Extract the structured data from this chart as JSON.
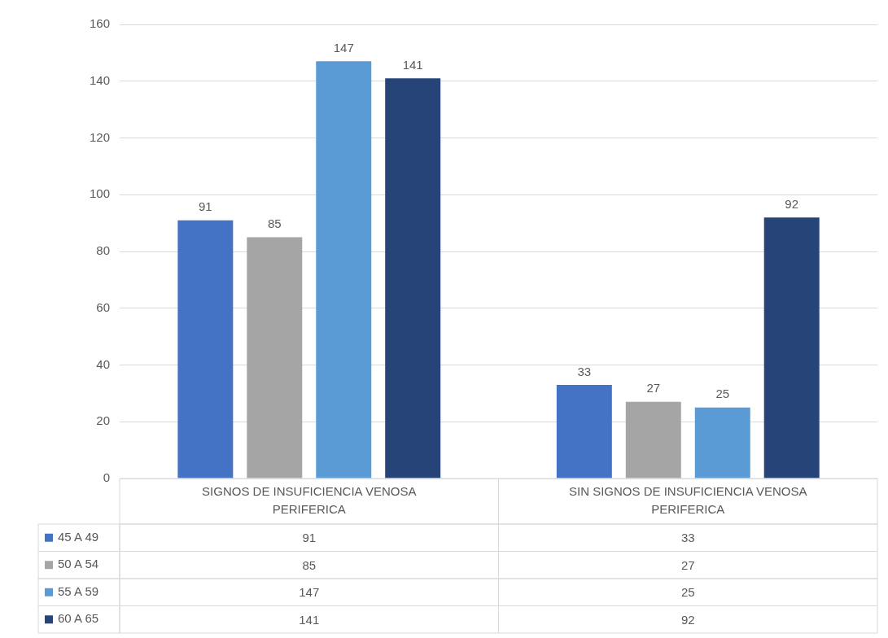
{
  "chart_data": {
    "type": "bar",
    "categories": [
      "SIGNOS DE INSUFICIENCIA VENOSA PERIFERICA",
      "SIN SIGNOS DE INSUFICIENCIA VENOSA PERIFERICA"
    ],
    "series": [
      {
        "name": "45 A 49",
        "color": "#4472c4",
        "values": [
          91,
          33
        ],
        "value_labels": [
          "91",
          "33"
        ]
      },
      {
        "name": "50 A 54",
        "color": "#a5a5a5",
        "values": [
          85,
          27
        ],
        "value_labels": [
          "85",
          "27"
        ]
      },
      {
        "name": "55 A 59",
        "color": "#5b9bd5",
        "values": [
          147,
          25
        ],
        "value_labels": [
          "147",
          "25"
        ]
      },
      {
        "name": "60 A 65",
        "color": "#264478",
        "values": [
          141,
          92
        ],
        "value_labels": [
          "141",
          "92"
        ]
      }
    ],
    "ylim": [
      0,
      160
    ],
    "yticks": [
      0,
      20,
      40,
      60,
      80,
      100,
      120,
      140,
      160
    ],
    "annotations": [
      "91",
      "33",
      "85",
      "27",
      "147",
      "25",
      "141",
      "92"
    ],
    "grid": "y",
    "legend": "bottom",
    "data_labels": true
  }
}
